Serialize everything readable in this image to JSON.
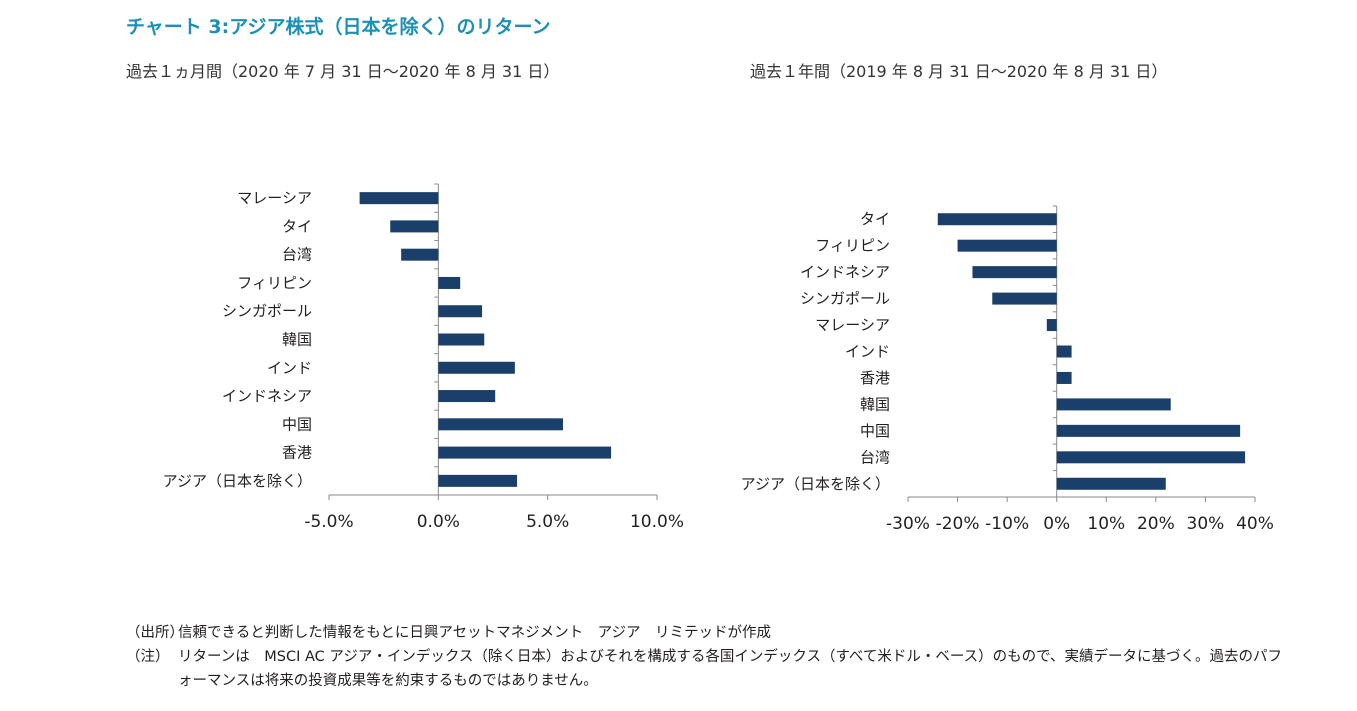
{
  "title": "チャート 3:アジア株式（日本を除く）のリターン",
  "chart_data": [
    {
      "type": "bar",
      "orientation": "horizontal",
      "title": "過去１ヵ月間（2020 年 7 月 31 日～2020 年 8 月 31 日）",
      "categories": [
        "マレーシア",
        "タイ",
        "台湾",
        "フィリピン",
        "シンガポール",
        "韓国",
        "インド",
        "インドネシア",
        "中国",
        "香港",
        "アジア（日本を除く）"
      ],
      "values": [
        -3.6,
        -2.2,
        -1.7,
        1.0,
        2.0,
        2.1,
        3.5,
        2.6,
        5.7,
        7.9,
        3.6
      ],
      "xlim": [
        -5,
        10
      ],
      "xticks": [
        -5,
        0,
        5,
        10
      ],
      "xtick_labels": [
        "-5.0%",
        "0.0%",
        "5.0%",
        "10.0%"
      ],
      "grid": false,
      "color": "#1b3f6b"
    },
    {
      "type": "bar",
      "orientation": "horizontal",
      "title": "過去１年間（2019 年 8 月 31 日～2020 年 8 月 31 日）",
      "categories": [
        "タイ",
        "フィリピン",
        "インドネシア",
        "シンガポール",
        "マレーシア",
        "インド",
        "香港",
        "韓国",
        "中国",
        "台湾",
        "アジア（日本を除く）"
      ],
      "values": [
        -24,
        -20,
        -17,
        -13,
        -2,
        3,
        3,
        23,
        37,
        38,
        22
      ],
      "xlim": [
        -30,
        40
      ],
      "xticks": [
        -30,
        -20,
        -10,
        0,
        10,
        20,
        30,
        40
      ],
      "xtick_labels": [
        "-30%",
        "-20%",
        "-10%",
        "0%",
        "10%",
        "20%",
        "30%",
        "40%"
      ],
      "grid": false,
      "color": "#1b3f6b"
    }
  ],
  "notes": [
    {
      "head": "（出所）",
      "body": "信頼できると判断した情報をもとに日興アセットマネジメント　アジア　リミテッドが作成"
    },
    {
      "head": "（注）",
      "body": "リターンは　MSCI AC アジア・インデックス（除く日本）およびそれを構成する各国インデックス（すべて米ドル・ベース）のもので、実績データに基づく。過去のパフォーマンスは将来の投資成果等を約束するものではありません。"
    }
  ]
}
